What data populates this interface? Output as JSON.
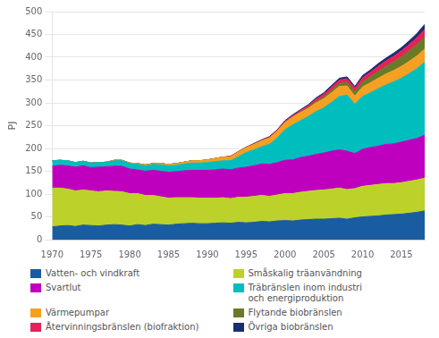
{
  "chart_data": {
    "type": "area",
    "stacked": true,
    "ylabel": "PJ",
    "x": [
      1970,
      1971,
      1972,
      1973,
      1974,
      1975,
      1976,
      1977,
      1978,
      1979,
      1980,
      1981,
      1982,
      1983,
      1984,
      1985,
      1986,
      1987,
      1988,
      1989,
      1990,
      1991,
      1992,
      1993,
      1994,
      1995,
      1996,
      1997,
      1998,
      1999,
      2000,
      2001,
      2002,
      2003,
      2004,
      2005,
      2006,
      2007,
      2008,
      2009,
      2010,
      2011,
      2012,
      2013,
      2014,
      2015,
      2016,
      2017,
      2018
    ],
    "xlim": [
      1970,
      2018
    ],
    "xticks": [
      1970,
      1975,
      1980,
      1985,
      1990,
      1995,
      2000,
      2005,
      2010,
      2015
    ],
    "ylim": [
      0,
      500
    ],
    "yticks": [
      0,
      50,
      100,
      150,
      200,
      250,
      300,
      350,
      400,
      450,
      500
    ],
    "grid": "y",
    "legend": "bottom",
    "series": [
      {
        "name": "Vatten- och vindkraft",
        "color": "#1a5ca0",
        "values": [
          28,
          30,
          31,
          29,
          32,
          31,
          30,
          32,
          33,
          32,
          30,
          33,
          31,
          34,
          33,
          32,
          34,
          35,
          36,
          35,
          35,
          36,
          37,
          36,
          38,
          37,
          38,
          40,
          39,
          41,
          42,
          41,
          43,
          44,
          45,
          45,
          46,
          47,
          45,
          48,
          50,
          51,
          52,
          54,
          55,
          56,
          58,
          60,
          63
        ]
      },
      {
        "name": "Småskalig träanvändning",
        "color": "#bcd22a",
        "values": [
          85,
          83,
          80,
          78,
          77,
          76,
          75,
          75,
          73,
          73,
          71,
          68,
          66,
          63,
          61,
          59,
          58,
          57,
          56,
          56,
          56,
          55,
          55,
          54,
          55,
          56,
          57,
          57,
          56,
          57,
          59,
          60,
          61,
          62,
          63,
          64,
          65,
          66,
          65,
          64,
          67,
          68,
          69,
          69,
          68,
          69,
          70,
          71,
          72
        ]
      },
      {
        "name": "Svartlut",
        "color": "#be00be",
        "values": [
          48,
          50,
          51,
          52,
          53,
          51,
          54,
          53,
          55,
          56,
          54,
          52,
          53,
          55,
          56,
          57,
          57,
          59,
          60,
          61,
          61,
          62,
          63,
          63,
          64,
          66,
          67,
          69,
          70,
          71,
          73,
          74,
          76,
          77,
          79,
          81,
          83,
          84,
          84,
          77,
          81,
          83,
          84,
          86,
          87,
          89,
          90,
          91,
          94
        ]
      },
      {
        "name": "Träbränslen inom industri\noch energiproduktion",
        "color": "#00bebe",
        "values": [
          12,
          11,
          11,
          10,
          10,
          10,
          10,
          10,
          12,
          12,
          12,
          12,
          12,
          13,
          14,
          14,
          14,
          15,
          16,
          16,
          17,
          18,
          18,
          20,
          25,
          32,
          35,
          38,
          44,
          54,
          67,
          77,
          81,
          87,
          94,
          99,
          107,
          117,
          123,
          108,
          116,
          120,
          126,
          130,
          136,
          140,
          146,
          153,
          160
        ]
      },
      {
        "name": "Värmepumpar",
        "color": "#f5a020",
        "values": [
          0,
          0,
          0,
          0,
          0,
          0,
          0,
          0,
          1,
          1,
          1,
          2,
          2,
          2,
          3,
          3,
          4,
          4,
          5,
          5,
          6,
          7,
          8,
          9,
          10,
          11,
          12,
          13,
          14,
          15,
          16,
          17,
          18,
          18,
          19,
          20,
          21,
          22,
          20,
          18,
          21,
          22,
          23,
          24,
          25,
          26,
          27,
          28,
          29
        ]
      },
      {
        "name": "Flytande biobränslen",
        "color": "#6b7a28",
        "values": [
          0,
          0,
          0,
          0,
          0,
          0,
          0,
          0,
          0,
          0,
          0,
          0,
          0,
          0,
          0,
          0,
          0,
          0,
          0,
          0,
          0,
          0,
          0,
          0,
          0,
          0,
          0,
          0,
          0,
          0,
          0,
          0,
          1,
          2,
          3,
          4,
          5,
          6,
          8,
          9,
          11,
          13,
          15,
          17,
          19,
          21,
          23,
          25,
          27
        ]
      },
      {
        "name": "Återvinningsbränslen (biofraktion)",
        "color": "#e8205a",
        "values": [
          0,
          0,
          0,
          0,
          0,
          0,
          0,
          0,
          0,
          0,
          0,
          0,
          0,
          0,
          0,
          0,
          0,
          0,
          0,
          0,
          0,
          0,
          0,
          1,
          1,
          1,
          1,
          1,
          2,
          2,
          2,
          3,
          3,
          4,
          5,
          6,
          7,
          8,
          8,
          8,
          9,
          10,
          11,
          12,
          12,
          13,
          14,
          15,
          16
        ]
      },
      {
        "name": "Övriga biobränslen",
        "color": "#1a2f70",
        "values": [
          0,
          0,
          0,
          0,
          0,
          0,
          0,
          0,
          0,
          0,
          0,
          0,
          0,
          0,
          0,
          0,
          0,
          0,
          0,
          0,
          0,
          0,
          0,
          0,
          0,
          0,
          1,
          1,
          1,
          1,
          2,
          2,
          2,
          2,
          3,
          3,
          4,
          4,
          4,
          4,
          5,
          5,
          6,
          6,
          7,
          7,
          8,
          9,
          11
        ]
      }
    ]
  }
}
